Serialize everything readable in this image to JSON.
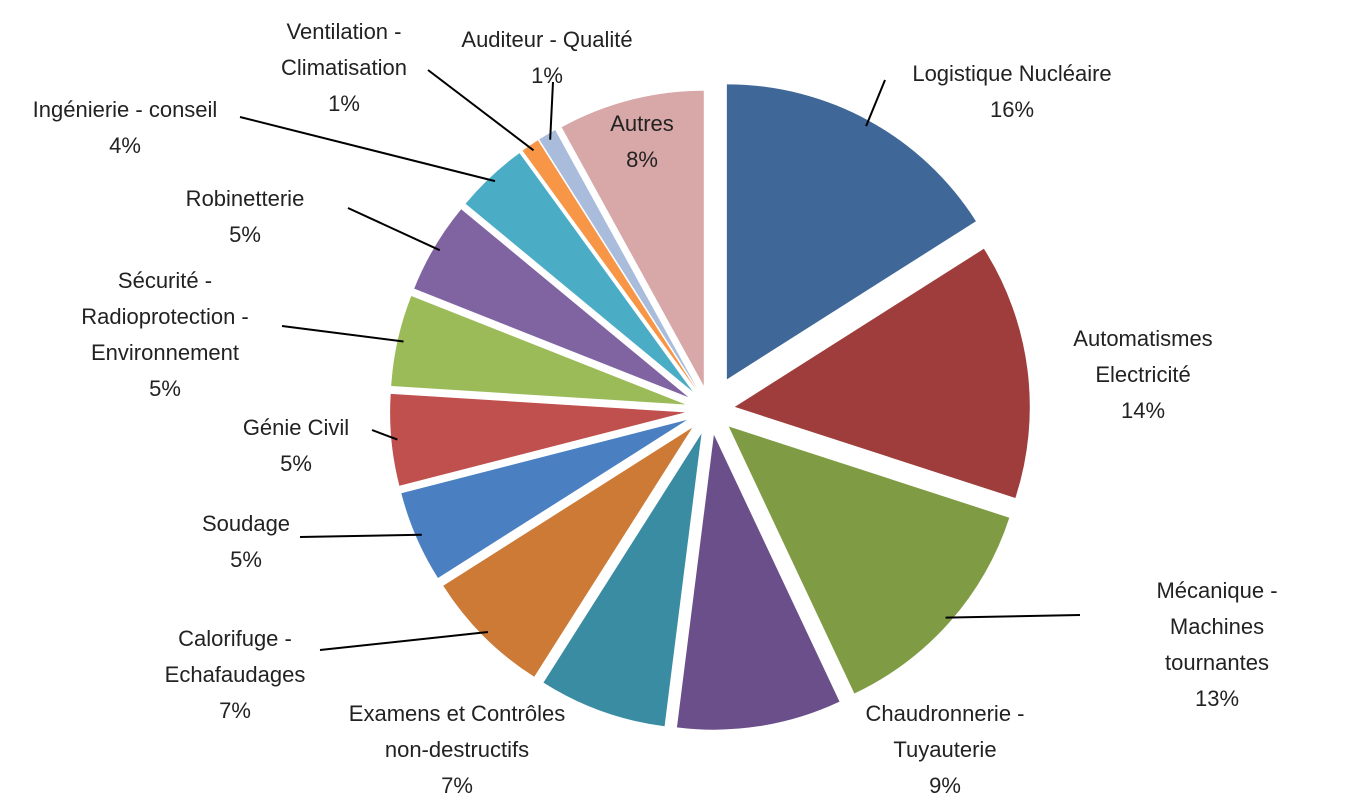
{
  "chart_data": {
    "type": "pie",
    "categories": [
      "Logistique Nucléaire",
      "Automatismes\nElectricité",
      "Mécanique - Machines\ntournantes",
      "Chaudronnerie -\nTuyauterie",
      "Examens et Contrôles\nnon-destructifs",
      "Calorifuge -\nEchafaudages",
      "Soudage",
      "Génie Civil",
      "Sécurité -\nRadioprotection -\nEnvironnement",
      "Robinetterie",
      "Ingénierie - conseil",
      "Ventilation -\nClimatisation",
      "Auditeur - Qualité",
      "Autres"
    ],
    "values": [
      16,
      14,
      13,
      9,
      7,
      7,
      5,
      5,
      5,
      5,
      4,
      1,
      1,
      8
    ],
    "value_labels": [
      "16%",
      "14%",
      "13%",
      "9%",
      "7%",
      "7%",
      "5%",
      "5%",
      "5%",
      "5%",
      "4%",
      "1%",
      "1%",
      "8%"
    ],
    "colors": [
      "#3f6797",
      "#9e3d3b",
      "#7f9c45",
      "#6a4f8a",
      "#3a8ca3",
      "#cd7a36",
      "#4a7fc1",
      "#c0504d",
      "#9bbb59",
      "#8064a2",
      "#4bacc6",
      "#f79646",
      "#a9bcdc",
      "#d8a7a7"
    ]
  }
}
